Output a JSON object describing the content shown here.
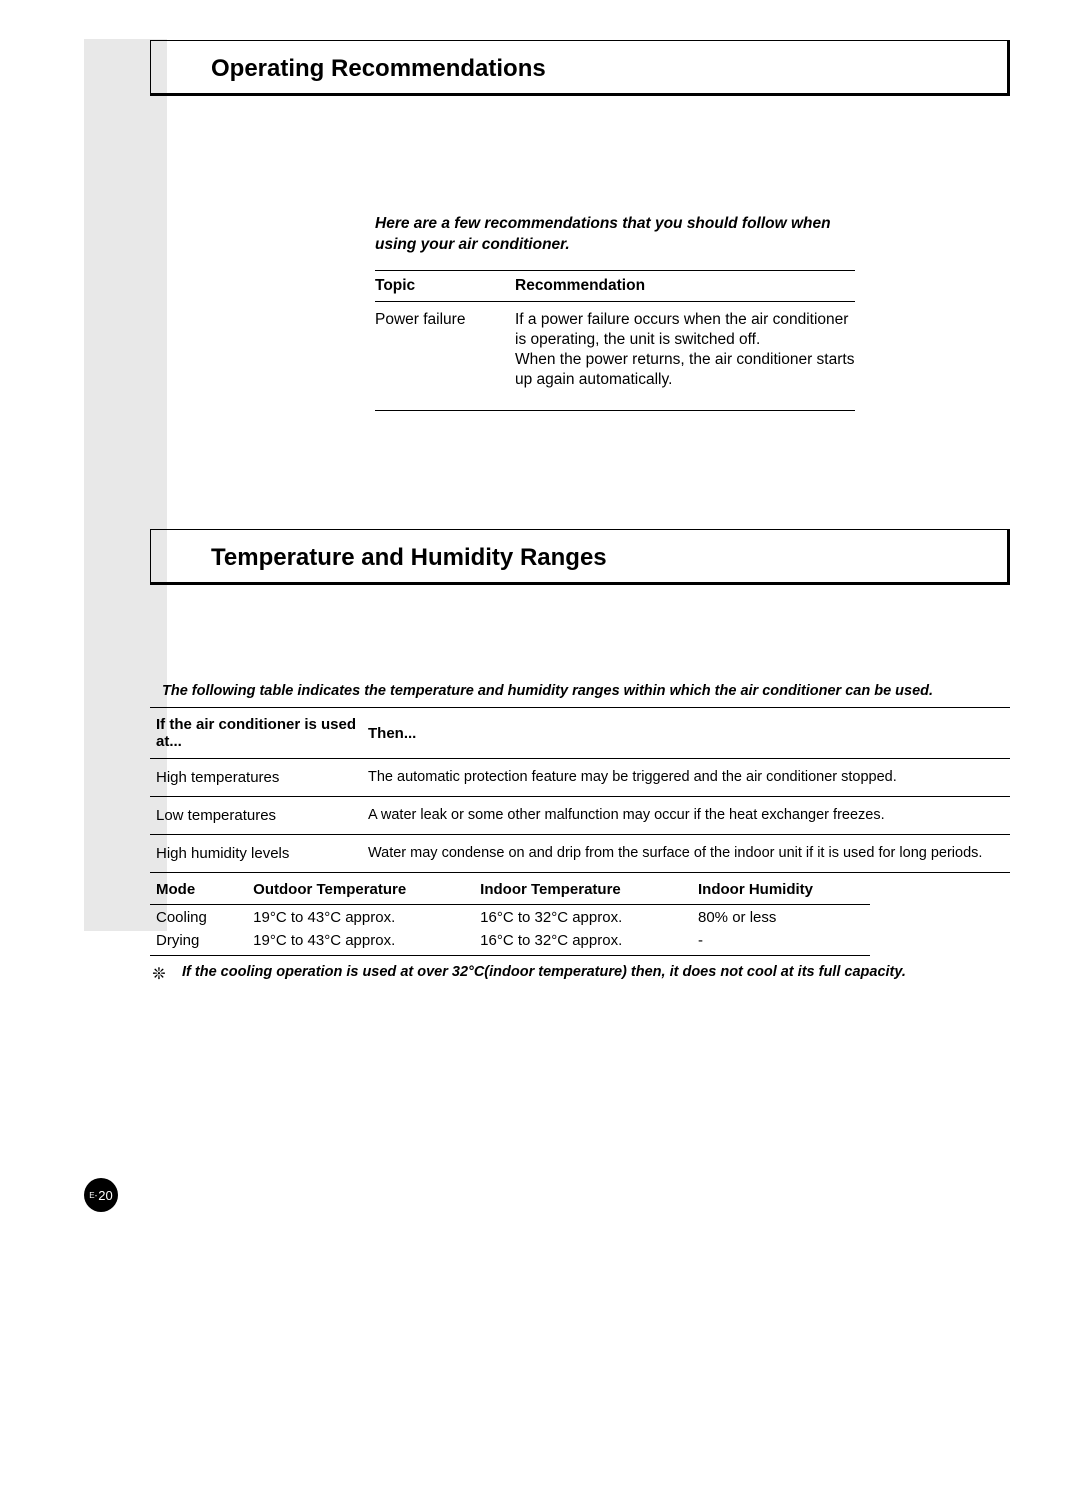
{
  "colors": {
    "sidebar_bg": "#e8e8e8",
    "page_bg": "#ffffff",
    "text": "#000000",
    "rule": "#000000",
    "badge_bg": "#000000",
    "badge_text": "#ffffff"
  },
  "section1": {
    "title": "Operating Recommendations",
    "intro": "Here are a few recommendations that you should follow when using your air conditioner.",
    "table": {
      "headers": {
        "topic": "Topic",
        "rec": "Recommendation"
      },
      "rows": [
        {
          "topic": "Power failure",
          "rec": "If a power failure occurs when the air conditioner is operating, the unit is switched off.\nWhen the power returns, the air conditioner starts up again automatically."
        }
      ]
    }
  },
  "section2": {
    "title": "Temperature and Humidity Ranges",
    "intro": "The following table indicates the temperature and humidity ranges within which the air conditioner can be used.",
    "cond_table": {
      "headers": {
        "cond": "If the air conditioner is used at...",
        "then": "Then..."
      },
      "rows": [
        {
          "cond": "High temperatures",
          "then": "The automatic protection feature may be triggered and the air conditioner stopped."
        },
        {
          "cond": "Low temperatures",
          "then": "A water leak or some other malfunction may occur if the heat exchanger freezes."
        },
        {
          "cond": "High humidity levels",
          "then": "Water may condense on and drip from the surface of the indoor unit if it is used for long periods."
        }
      ]
    },
    "range_table": {
      "headers": {
        "mode": "Mode",
        "out": "Outdoor Temperature",
        "in": "Indoor Temperature",
        "hum": "Indoor Humidity"
      },
      "rows": [
        {
          "mode": "Cooling",
          "out": "19°C to 43°C approx.",
          "in": "16°C to 32°C approx.",
          "hum": "80% or less"
        },
        {
          "mode": "Drying",
          "out": "19°C to 43°C approx.",
          "in": "16°C to 32°C approx.",
          "hum": "-"
        }
      ]
    },
    "footnote": {
      "symbol": "❊",
      "text": "If the cooling operation is used at over 32°C(indoor temperature) then, it does not cool at its full capacity."
    }
  },
  "page_number": {
    "prefix": "E-",
    "number": "20"
  }
}
